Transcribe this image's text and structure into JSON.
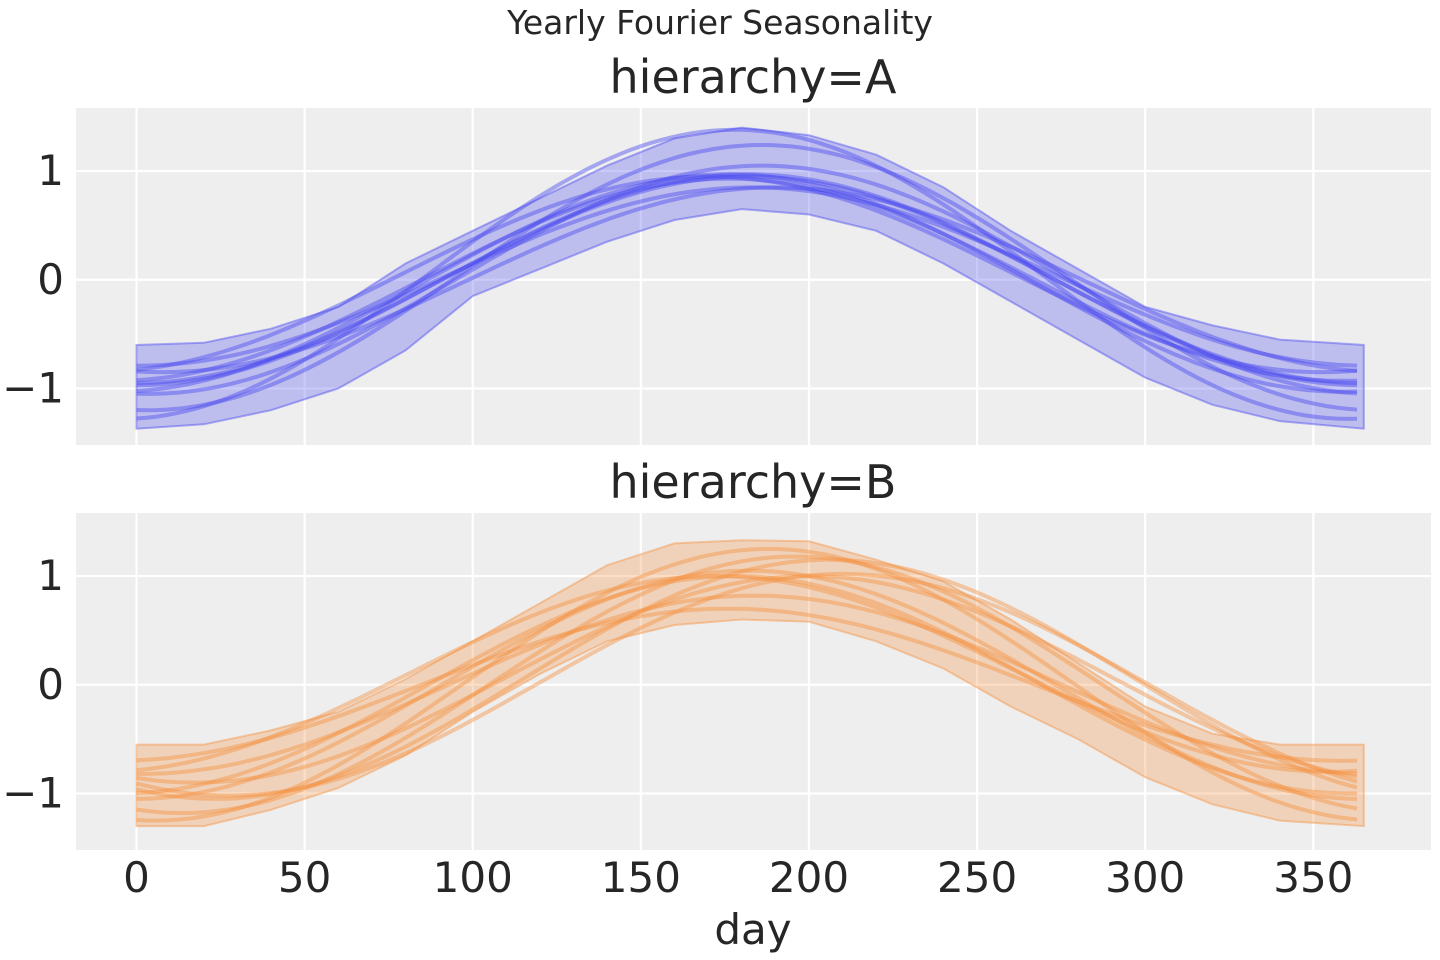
{
  "figure": {
    "suptitle": "Yearly Fourier Seasonality"
  },
  "colors": {
    "panel_background": "#eeeeee",
    "grid": "#ffffff",
    "text": "#262626",
    "series_a": "#4c4cf0",
    "series_b": "#f59242"
  },
  "chart_data": [
    {
      "type": "line",
      "title": "hierarchy=A",
      "xlabel": "",
      "ylabel": "",
      "xlim": [
        -18,
        385
      ],
      "ylim": [
        -1.52,
        1.58
      ],
      "xticks": [
        0,
        50,
        100,
        150,
        200,
        250,
        300,
        350
      ],
      "xtick_labels_visible": false,
      "yticks": [
        -1,
        0,
        1
      ],
      "ytick_labels": [
        "−1",
        "0",
        "1"
      ],
      "grid": true,
      "band": {
        "x": [
          0,
          20,
          40,
          60,
          80,
          100,
          120,
          140,
          160,
          180,
          200,
          220,
          240,
          260,
          280,
          300,
          320,
          340,
          365
        ],
        "upper": [
          -0.6,
          -0.58,
          -0.45,
          -0.25,
          0.15,
          0.45,
          0.75,
          1.05,
          1.3,
          1.4,
          1.33,
          1.15,
          0.85,
          0.45,
          0.1,
          -0.25,
          -0.42,
          -0.55,
          -0.6
        ],
        "lower": [
          -1.37,
          -1.33,
          -1.2,
          -1.0,
          -0.65,
          -0.15,
          0.1,
          0.35,
          0.55,
          0.65,
          0.6,
          0.45,
          0.15,
          -0.2,
          -0.55,
          -0.9,
          -1.15,
          -1.3,
          -1.37
        ]
      },
      "series": [
        {
          "amplitude": 0.93,
          "peak_day": 176,
          "offset": 0.0
        },
        {
          "amplitude": 1.05,
          "peak_day": 186,
          "offset": 0.0
        },
        {
          "amplitude": 0.85,
          "peak_day": 190,
          "offset": 0.0
        },
        {
          "amplitude": 0.97,
          "peak_day": 182,
          "offset": 0.0
        },
        {
          "amplitude": 0.9,
          "peak_day": 170,
          "offset": 0.05
        },
        {
          "amplitude": 1.33,
          "peak_day": 178,
          "offset": 0.05
        },
        {
          "amplitude": 1.22,
          "peak_day": 186,
          "offset": 0.02
        },
        {
          "amplitude": 0.95,
          "peak_day": 182,
          "offset": 0.0
        },
        {
          "amplitude": 1.0,
          "peak_day": 176,
          "offset": -0.03
        },
        {
          "amplitude": 0.82,
          "peak_day": 183,
          "offset": 0.03
        }
      ]
    },
    {
      "type": "line",
      "title": "hierarchy=B",
      "xlabel": "day",
      "ylabel": "",
      "xlim": [
        -18,
        385
      ],
      "ylim": [
        -1.52,
        1.58
      ],
      "xticks": [
        0,
        50,
        100,
        150,
        200,
        250,
        300,
        350
      ],
      "xtick_labels": [
        "0",
        "50",
        "100",
        "150",
        "200",
        "250",
        "300",
        "350"
      ],
      "yticks": [
        -1,
        0,
        1
      ],
      "ytick_labels": [
        "−1",
        "0",
        "1"
      ],
      "grid": true,
      "band": {
        "x": [
          0,
          20,
          40,
          60,
          80,
          100,
          120,
          140,
          160,
          180,
          200,
          220,
          240,
          260,
          280,
          300,
          320,
          340,
          365
        ],
        "upper": [
          -0.55,
          -0.55,
          -0.42,
          -0.25,
          0.05,
          0.4,
          0.75,
          1.1,
          1.3,
          1.33,
          1.32,
          1.15,
          0.95,
          0.6,
          0.2,
          -0.2,
          -0.45,
          -0.55,
          -0.55
        ],
        "lower": [
          -1.3,
          -1.3,
          -1.15,
          -0.95,
          -0.65,
          -0.25,
          0.1,
          0.4,
          0.55,
          0.6,
          0.58,
          0.4,
          0.15,
          -0.2,
          -0.5,
          -0.85,
          -1.1,
          -1.25,
          -1.3
        ]
      },
      "series": [
        {
          "amplitude": 1.05,
          "peak_day": 182,
          "offset": 0.0
        },
        {
          "amplitude": 1.18,
          "peak_day": 196,
          "offset": 0.0
        },
        {
          "amplitude": 0.82,
          "peak_day": 184,
          "offset": 0.0
        },
        {
          "amplitude": 1.0,
          "peak_day": 178,
          "offset": 0.0
        },
        {
          "amplitude": 1.1,
          "peak_day": 206,
          "offset": 0.05
        },
        {
          "amplitude": 1.25,
          "peak_day": 188,
          "offset": 0.0
        },
        {
          "amplitude": 0.95,
          "peak_day": 200,
          "offset": 0.05
        },
        {
          "amplitude": 0.9,
          "peak_day": 172,
          "offset": 0.1
        },
        {
          "amplitude": 0.7,
          "peak_day": 176,
          "offset": 0.0
        },
        {
          "amplitude": 1.02,
          "peak_day": 210,
          "offset": 0.0
        }
      ]
    }
  ]
}
